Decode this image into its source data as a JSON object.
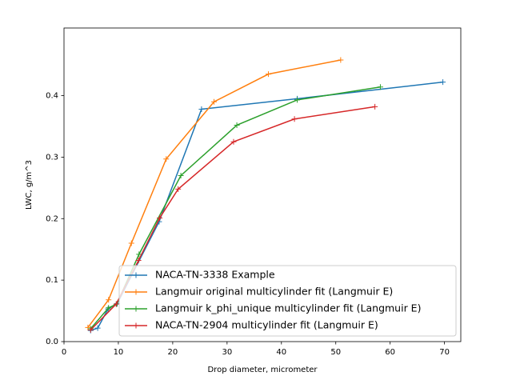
{
  "chart_data": {
    "type": "line",
    "xlabel": "Drop diameter, micrometer",
    "ylabel": "LWC, g/m^3",
    "xlim": [
      0,
      73
    ],
    "ylim": [
      0,
      0.51
    ],
    "xticks": [
      0,
      10,
      20,
      30,
      40,
      50,
      60,
      70
    ],
    "yticks": [
      {
        "value": 0,
        "label": "0.0"
      },
      0.1,
      0.2,
      0.3,
      0.4
    ],
    "legend": "lower right",
    "marker": "+",
    "series": [
      {
        "name": "NACA-TN-3338 Example",
        "color": "#1f77b4",
        "x": [
          4.9,
          6.2,
          8.1,
          9.8,
          17.5,
          25.3,
          42.9,
          69.7
        ],
        "values": [
          0.018,
          0.022,
          0.053,
          0.062,
          0.195,
          0.378,
          0.395,
          0.422
        ]
      },
      {
        "name": "Langmuir original multicylinder fit (Langmuir E)",
        "color": "#ff7f0e",
        "x": [
          4.4,
          8.2,
          12.4,
          18.8,
          27.6,
          37.6,
          50.9
        ],
        "values": [
          0.023,
          0.068,
          0.16,
          0.297,
          0.39,
          0.435,
          0.458
        ]
      },
      {
        "name": "Langmuir k_phi_unique multicylinder fit (Langmuir E)",
        "color": "#2ca02c",
        "x": [
          4.9,
          8.2,
          9.7,
          13.8,
          21.5,
          31.8,
          42.9,
          58.2
        ],
        "values": [
          0.021,
          0.055,
          0.061,
          0.142,
          0.27,
          0.352,
          0.393,
          0.414
        ]
      },
      {
        "name": "NACA-TN-2904 multicylinder fit (Langmuir E)",
        "color": "#d62728",
        "x": [
          4.9,
          9.6,
          13.7,
          17.6,
          21.0,
          31.2,
          42.4,
          57.2
        ],
        "values": [
          0.019,
          0.061,
          0.132,
          0.201,
          0.248,
          0.325,
          0.362,
          0.382
        ]
      }
    ]
  }
}
